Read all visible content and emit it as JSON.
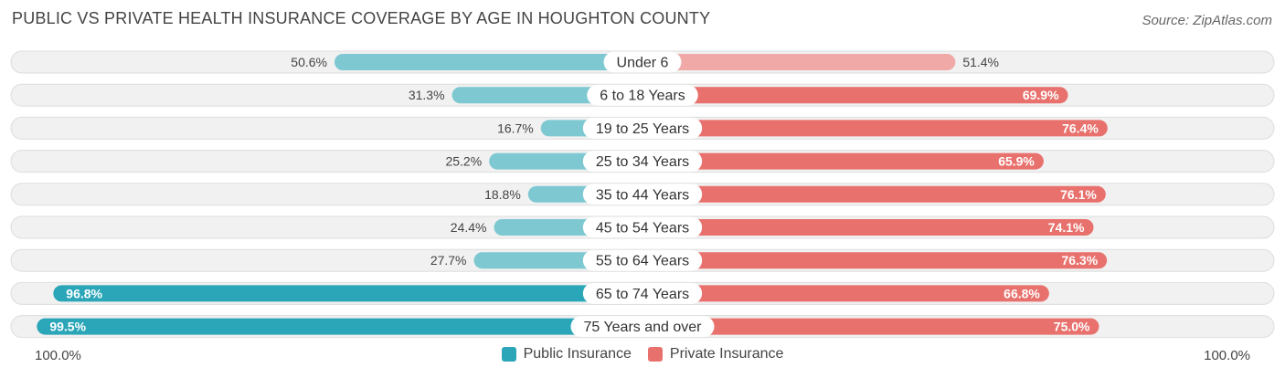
{
  "title": "PUBLIC VS PRIVATE HEALTH INSURANCE COVERAGE BY AGE IN HOUGHTON COUNTY",
  "source": "Source: ZipAtlas.com",
  "axis": {
    "left_label": "100.0%",
    "right_label": "100.0%"
  },
  "legend": {
    "public_label": "Public Insurance",
    "private_label": "Private Insurance"
  },
  "colors": {
    "public_light": "#7ec8d2",
    "public_dark": "#2aa6b8",
    "private_light": "#f0a9a6",
    "private_dark": "#e8716d",
    "track_bg": "#f1f1f1",
    "track_border": "#dddddd",
    "legend_public": "#2aa6b8",
    "legend_private": "#e8716d"
  },
  "chart_data": {
    "type": "bar",
    "orientation": "diverging-horizontal",
    "title": "PUBLIC VS PRIVATE HEALTH INSURANCE COVERAGE BY AGE IN HOUGHTON COUNTY",
    "xlabel": "",
    "ylabel": "",
    "xlim": [
      -100,
      100
    ],
    "categories": [
      "Under 6",
      "6 to 18 Years",
      "19 to 25 Years",
      "25 to 34 Years",
      "35 to 44 Years",
      "45 to 54 Years",
      "55 to 64 Years",
      "65 to 74 Years",
      "75 Years and over"
    ],
    "series": [
      {
        "name": "Public Insurance",
        "values": [
          50.6,
          31.3,
          16.7,
          25.2,
          18.8,
          24.4,
          27.7,
          96.8,
          99.5
        ],
        "labels": [
          "50.6%",
          "31.3%",
          "16.7%",
          "25.2%",
          "18.8%",
          "24.4%",
          "27.7%",
          "96.8%",
          "99.5%"
        ]
      },
      {
        "name": "Private Insurance",
        "values": [
          51.4,
          69.9,
          76.4,
          65.9,
          76.1,
          74.1,
          76.3,
          66.8,
          75.0
        ],
        "labels": [
          "51.4%",
          "69.9%",
          "76.4%",
          "65.9%",
          "76.1%",
          "74.1%",
          "76.3%",
          "66.8%",
          "75.0%"
        ]
      }
    ],
    "legend_position": "bottom-center"
  }
}
